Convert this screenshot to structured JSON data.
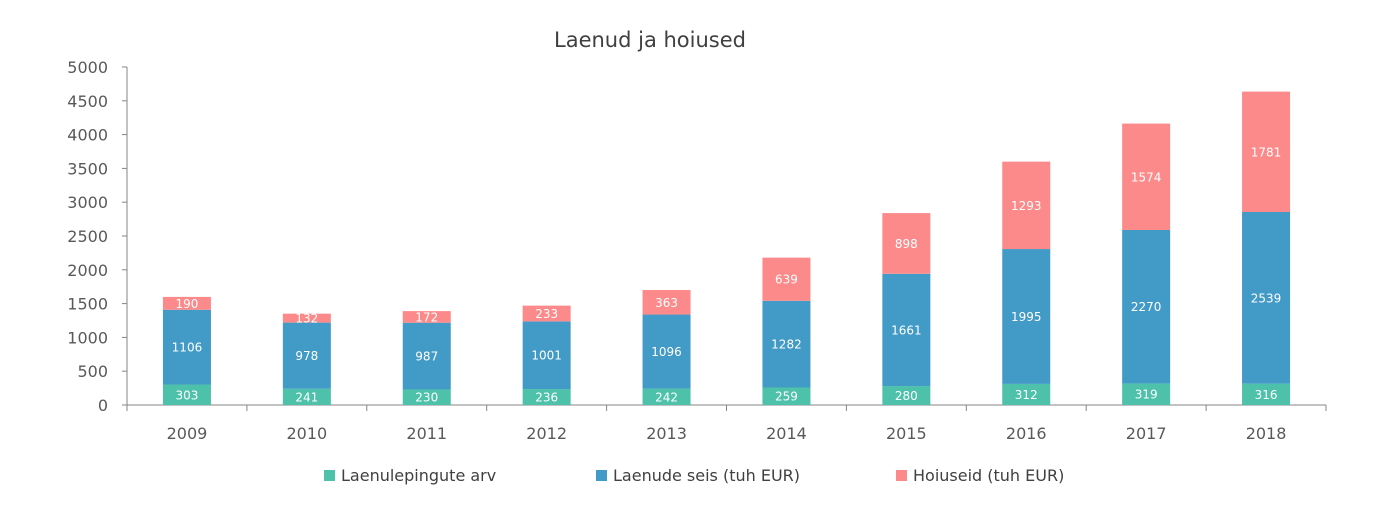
{
  "chart_data": {
    "type": "bar",
    "stacked": true,
    "title": "Laenud ja hoiused",
    "categories": [
      "2009",
      "2010",
      "2011",
      "2012",
      "2013",
      "2014",
      "2015",
      "2016",
      "2017",
      "2018"
    ],
    "series": [
      {
        "name": "Laenulepingute arv",
        "color": "#4dc1aa",
        "values": [
          303,
          241,
          230,
          236,
          242,
          259,
          280,
          312,
          319,
          316
        ]
      },
      {
        "name": "Laenude seis (tuh EUR)",
        "color": "#429ac7",
        "values": [
          1106,
          978,
          987,
          1001,
          1096,
          1282,
          1661,
          1995,
          2270,
          2539
        ]
      },
      {
        "name": "Hoiuseid (tuh EUR)",
        "color": "#fd8a8a",
        "values": [
          190,
          132,
          172,
          233,
          363,
          639,
          898,
          1293,
          1574,
          1781
        ]
      }
    ],
    "ylim": [
      0,
      5000
    ],
    "yticks": [
      0,
      500,
      1000,
      1500,
      2000,
      2500,
      3000,
      3500,
      4000,
      4500,
      5000
    ],
    "grid": false,
    "legend_position": "bottom"
  }
}
